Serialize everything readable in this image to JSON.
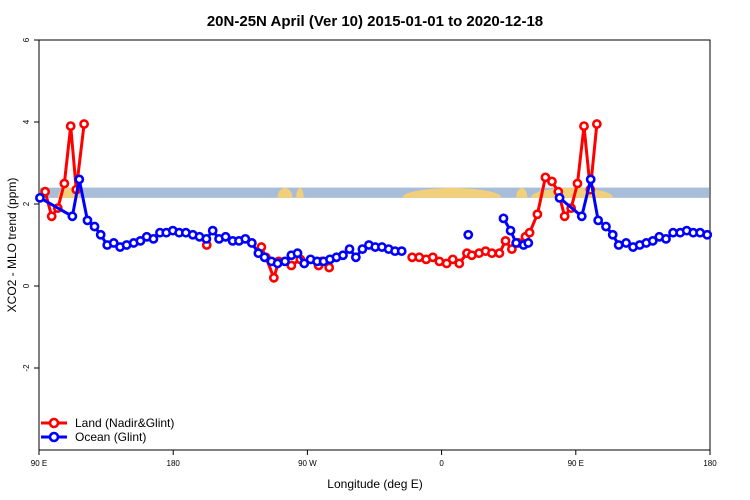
{
  "chart_data": {
    "type": "line",
    "title": "20N-25N April (Ver 10)   2015-01-01 to 2020-12-18",
    "xlabel": "Longitude (deg E)",
    "ylabel": "XCO2 - MLO trend (ppm)",
    "xlim": [
      90,
      450
    ],
    "ylim": [
      -4,
      6
    ],
    "x_ticks": [
      {
        "value": 90,
        "label": "90 E"
      },
      {
        "value": 162,
        "label": "180"
      },
      {
        "value": 234,
        "label": "90 W"
      },
      {
        "value": 306,
        "label": "0"
      },
      {
        "value": 378,
        "label": "90 E"
      },
      {
        "value": 450,
        "label": "180"
      }
    ],
    "y_ticks": [
      {
        "value": -2,
        "label": "-2"
      },
      {
        "value": 0,
        "label": "0"
      },
      {
        "value": 2,
        "label": "2"
      },
      {
        "value": 4,
        "label": "4"
      },
      {
        "value": 6,
        "label": "6"
      }
    ],
    "legend_position": "bottom-left",
    "map_band": {
      "y_low": 2.15,
      "y_high": 2.4,
      "ocean_color": "#a8bdd8",
      "land_color": "#f2cf7a"
    },
    "series": [
      {
        "name": "Land (Nadir&Glint)",
        "color": "#ff0000",
        "points": [
          [
            93.3,
            2.3
          ],
          [
            96.8,
            1.7
          ],
          [
            100.1,
            1.9
          ],
          [
            103.6,
            2.5
          ],
          [
            107.0,
            3.9
          ],
          [
            110.0,
            2.35
          ],
          [
            114.2,
            3.95
          ],
          null,
          [
            180.0,
            1.0
          ],
          null,
          [
            209.3,
            0.95
          ],
          [
            211.7,
            0.7
          ],
          [
            216.0,
            0.2
          ],
          [
            218.6,
            0.6
          ],
          [
            225.4,
            0.5
          ],
          [
            230.2,
            0.65
          ],
          null,
          [
            240.0,
            0.5
          ],
          [
            241.8,
            0.6
          ],
          [
            245.7,
            0.45
          ],
          null,
          [
            290.2,
            0.7
          ],
          [
            294.0,
            0.7
          ],
          [
            297.7,
            0.65
          ],
          [
            301.3,
            0.7
          ],
          [
            304.8,
            0.6
          ],
          [
            308.7,
            0.55
          ],
          [
            312.0,
            0.65
          ],
          [
            315.5,
            0.55
          ],
          [
            319.6,
            0.8
          ],
          [
            322.2,
            0.75
          ],
          [
            326.1,
            0.8
          ],
          [
            329.6,
            0.85
          ],
          [
            333.0,
            0.8
          ],
          [
            337.0,
            0.8
          ],
          [
            340.3,
            1.1
          ],
          [
            343.7,
            0.9
          ],
          [
            347.2,
            1.05
          ],
          [
            351.0,
            1.2
          ],
          [
            353.2,
            1.3
          ],
          [
            357.4,
            1.75
          ],
          [
            361.7,
            2.65
          ],
          [
            365.2,
            2.55
          ],
          [
            368.6,
            2.3
          ],
          [
            372.0,
            1.7
          ],
          [
            375.5,
            1.9
          ],
          [
            378.9,
            2.5
          ],
          [
            382.4,
            3.9
          ],
          [
            385.8,
            2.35
          ],
          [
            389.3,
            3.95
          ]
        ]
      },
      {
        "name": "Ocean (Glint)",
        "color": "#0000ff",
        "points": [
          [
            90.5,
            2.15
          ],
          [
            107.9,
            1.7
          ],
          [
            111.6,
            2.6
          ],
          [
            116.0,
            1.6
          ],
          [
            119.8,
            1.45
          ],
          [
            123.1,
            1.25
          ],
          [
            126.6,
            1.0
          ],
          [
            130.1,
            1.05
          ],
          [
            133.5,
            0.95
          ],
          [
            137.0,
            1.0
          ],
          [
            140.8,
            1.05
          ],
          [
            144.4,
            1.1
          ],
          [
            147.8,
            1.2
          ],
          [
            151.4,
            1.15
          ],
          [
            154.9,
            1.3
          ],
          [
            158.3,
            1.3
          ],
          [
            161.8,
            1.35
          ],
          [
            165.2,
            1.3
          ],
          [
            168.8,
            1.3
          ],
          [
            172.5,
            1.25
          ],
          [
            176.1,
            1.2
          ],
          [
            179.8,
            1.15
          ],
          [
            183.2,
            1.35
          ],
          [
            186.6,
            1.15
          ],
          [
            190.1,
            1.2
          ],
          [
            193.9,
            1.1
          ],
          [
            197.3,
            1.1
          ],
          [
            200.7,
            1.15
          ],
          [
            204.2,
            1.05
          ],
          [
            207.7,
            0.8
          ],
          [
            211.0,
            0.7
          ],
          [
            214.7,
            0.6
          ],
          [
            218.0,
            0.55
          ],
          [
            222.0,
            0.6
          ],
          [
            225.4,
            0.75
          ],
          [
            228.7,
            0.8
          ],
          [
            232.3,
            0.55
          ],
          [
            235.7,
            0.65
          ],
          [
            239.2,
            0.6
          ],
          [
            242.7,
            0.6
          ],
          [
            246.1,
            0.65
          ],
          [
            249.6,
            0.7
          ],
          [
            253.1,
            0.75
          ],
          [
            256.6,
            0.9
          ],
          [
            260.0,
            0.7
          ],
          [
            263.5,
            0.9
          ],
          [
            267.0,
            1.0
          ],
          [
            270.4,
            0.95
          ],
          [
            274.0,
            0.95
          ],
          [
            277.6,
            0.9
          ],
          [
            281.0,
            0.85
          ],
          [
            284.6,
            0.85
          ],
          null,
          [
            320.3,
            1.25
          ],
          null,
          [
            339.2,
            1.65
          ],
          [
            343.0,
            1.35
          ],
          [
            346.0,
            1.05
          ],
          [
            350.0,
            1.0
          ],
          [
            352.5,
            1.05
          ],
          null,
          [
            369.3,
            2.15
          ],
          [
            381.2,
            1.7
          ],
          [
            386.0,
            2.6
          ],
          [
            390.0,
            1.6
          ],
          [
            394.2,
            1.45
          ],
          [
            397.8,
            1.25
          ],
          [
            401.0,
            1.0
          ],
          [
            405.0,
            1.05
          ],
          [
            408.7,
            0.95
          ],
          [
            412.3,
            1.0
          ],
          [
            415.8,
            1.05
          ],
          [
            419.3,
            1.1
          ],
          [
            422.8,
            1.2
          ],
          [
            426.4,
            1.15
          ],
          [
            430.2,
            1.3
          ],
          [
            434.0,
            1.3
          ],
          [
            437.5,
            1.35
          ],
          [
            441.0,
            1.3
          ],
          [
            444.7,
            1.3
          ],
          [
            448.5,
            1.25
          ]
        ]
      }
    ]
  }
}
